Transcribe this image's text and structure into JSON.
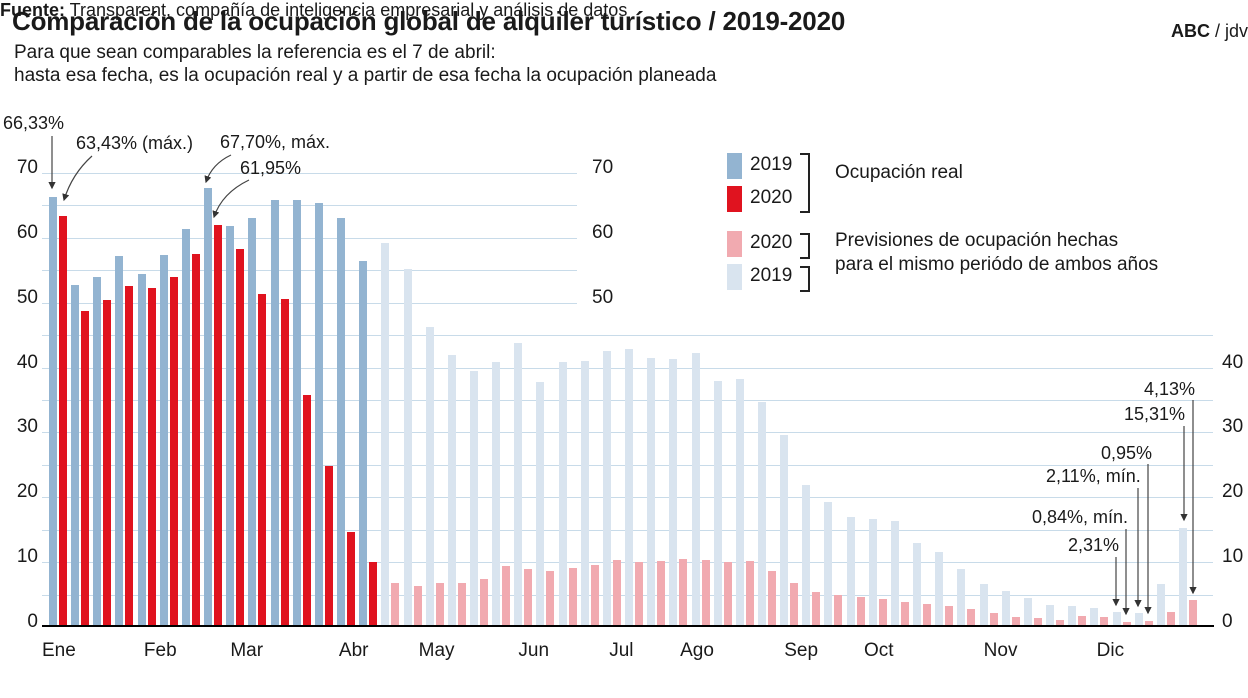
{
  "title": "Comparación de la ocupación global de alquiler turístico / 2019-2020",
  "subtitle_line1": "Para que sean comparables la referencia es el 7 de abril:",
  "subtitle_line2": "hasta esa fecha, es la ocupación real y a partir de esa fecha la ocupación planeada",
  "legend": {
    "real": {
      "label_2019": "2019",
      "label_2020": "2020",
      "caption": "Ocupación real"
    },
    "forecast": {
      "label_2020": "2020",
      "label_2019": "2019",
      "caption_line1": "Previsiones de ocupación hechas",
      "caption_line2": "para el mismo periódo de ambos años"
    }
  },
  "axis": {
    "left_labels": [
      "70",
      "60",
      "50",
      "40",
      "30",
      "20",
      "10",
      "0"
    ],
    "mid_labels": [
      "70",
      "60",
      "50"
    ],
    "right_labels": [
      "40",
      "30",
      "20",
      "10",
      "0"
    ]
  },
  "months": [
    "Ene",
    "Feb",
    "Mar",
    "Abr",
    "May",
    "Jun",
    "Jul",
    "Ago",
    "Sep",
    "Oct",
    "Nov",
    "Dic"
  ],
  "annotations": [
    {
      "text": "66,33%"
    },
    {
      "text": "63,43% (máx.)"
    },
    {
      "text": "67,70%, máx."
    },
    {
      "text": "61,95%"
    },
    {
      "text": "4,13%"
    },
    {
      "text": "15,31%"
    },
    {
      "text": "0,95%"
    },
    {
      "text": "2,11%, mín."
    },
    {
      "text": "0,84%, mín."
    },
    {
      "text": "2,31%"
    }
  ],
  "footer": {
    "source_bold": "Fuente:",
    "source_text": " Transparent, compañía de inteligencia empresarial y análisis de datos",
    "credit_bold": "ABC",
    "credit_rest": " / jdv"
  },
  "colors": {
    "real_2019": "#93b4d1",
    "real_2020": "#e0131f",
    "forecast_2020": "#f1aab0",
    "forecast_2019": "#d9e4ef",
    "gridline": "#c8dbe9"
  },
  "chart_data": {
    "type": "bar",
    "unit": "percent occupancy",
    "x_description": "semanas 1-52 del año",
    "ylim": [
      0,
      70
    ],
    "gridline_step": 5,
    "real_through_week": 15,
    "legend_position": "top-right",
    "series": [
      {
        "name": "2019",
        "values": [
          66.33,
          52.8,
          53.9,
          57.2,
          54.5,
          57.3,
          61.3,
          67.7,
          61.8,
          63.1,
          65.9,
          65.8,
          65.4,
          63.0,
          56.5,
          59.2,
          55.2,
          46.3,
          42.0,
          39.5,
          40.9,
          43.8,
          37.8,
          40.9,
          41.0,
          42.5,
          42.8,
          41.5,
          41.3,
          42.2,
          38.0,
          38.2,
          34.7,
          29.6,
          21.9,
          19.2,
          16.9,
          16.7,
          16.3,
          12.9,
          11.6,
          8.9,
          6.6,
          5.6,
          4.4,
          3.4,
          3.2,
          2.9,
          2.31,
          2.11,
          6.6,
          15.31
        ]
      },
      {
        "name": "2020",
        "values": [
          63.43,
          48.7,
          50.4,
          52.5,
          52.3,
          53.9,
          57.5,
          61.95,
          58.3,
          51.3,
          50.6,
          35.7,
          24.8,
          14.6,
          10.0,
          6.8,
          6.3,
          6.8,
          6.8,
          7.4,
          9.4,
          8.9,
          8.6,
          9.1,
          9.6,
          10.4,
          10.0,
          10.1,
          10.5,
          10.3,
          10.0,
          10.2,
          8.6,
          6.8,
          5.4,
          4.9,
          4.7,
          4.3,
          3.8,
          3.5,
          3.2,
          2.7,
          2.1,
          1.6,
          1.4,
          1.1,
          1.7,
          1.5,
          0.84,
          0.95,
          2.3,
          4.13
        ]
      }
    ],
    "annotated_points": [
      {
        "week": 1,
        "series": "2019",
        "label": "66,33%"
      },
      {
        "week": 1,
        "series": "2020",
        "label": "63,43% (máx.)"
      },
      {
        "week": 8,
        "series": "2019",
        "label": "67,70%, máx."
      },
      {
        "week": 8,
        "series": "2020",
        "label": "61,95%"
      },
      {
        "week": 49,
        "series": "2019",
        "label": "2,31%"
      },
      {
        "week": 49,
        "series": "2020",
        "label": "0,84%, mín."
      },
      {
        "week": 50,
        "series": "2019",
        "label": "2,11%, mín."
      },
      {
        "week": 50,
        "series": "2020",
        "label": "0,95%"
      },
      {
        "week": 52,
        "series": "2019",
        "label": "15,31%"
      },
      {
        "week": 52,
        "series": "2020",
        "label": "4,13%"
      }
    ]
  }
}
